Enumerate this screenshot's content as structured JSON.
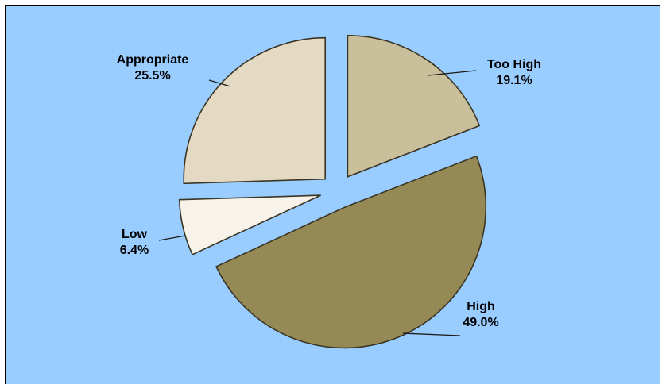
{
  "chart_data": {
    "type": "pie",
    "exploded": true,
    "background_color": "#99ccff",
    "slices": [
      {
        "label": "Too High",
        "value": 19.1,
        "value_label": "19.1%",
        "color": "#c9bf9b"
      },
      {
        "label": "High",
        "value": 49.0,
        "value_label": "49.0%",
        "color": "#958a56"
      },
      {
        "label": "Low",
        "value": 6.4,
        "value_label": "6.4%",
        "color": "#f7f3ea"
      },
      {
        "label": "Appropriate",
        "value": 25.5,
        "value_label": "25.5%",
        "color": "#e4dac3"
      }
    ]
  }
}
